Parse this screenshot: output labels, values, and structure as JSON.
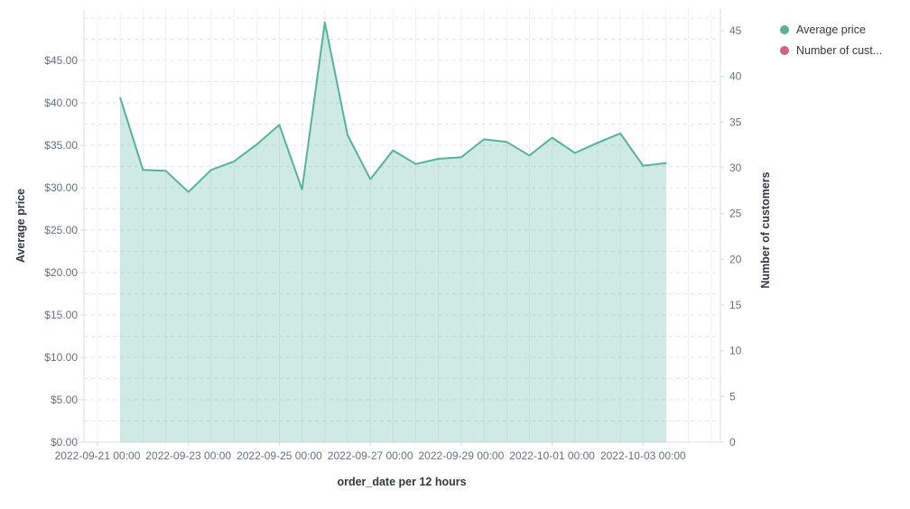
{
  "chart_data": {
    "type": "area",
    "title": "",
    "xlabel": "order_date per 12 hours",
    "ylabel_left": "Average price",
    "ylabel_right": "Number of customers",
    "x": [
      "2022-09-21 12:00",
      "2022-09-22 00:00",
      "2022-09-22 12:00",
      "2022-09-23 00:00",
      "2022-09-23 12:00",
      "2022-09-24 00:00",
      "2022-09-24 12:00",
      "2022-09-25 00:00",
      "2022-09-25 12:00",
      "2022-09-26 00:00",
      "2022-09-26 12:00",
      "2022-09-27 00:00",
      "2022-09-27 12:00",
      "2022-09-28 00:00",
      "2022-09-28 12:00",
      "2022-09-29 00:00",
      "2022-09-29 12:00",
      "2022-09-30 00:00",
      "2022-09-30 12:00",
      "2022-10-01 00:00",
      "2022-10-01 12:00",
      "2022-10-02 00:00",
      "2022-10-02 12:00",
      "2022-10-03 00:00",
      "2022-10-03 12:00"
    ],
    "series": [
      {
        "name": "Average price",
        "axis": "left",
        "color": "#54B399",
        "fill_opacity": 0.28,
        "values": [
          40.6,
          32.1,
          32.0,
          29.5,
          32.1,
          33.1,
          35.1,
          37.4,
          29.8,
          49.5,
          36.2,
          31.0,
          34.4,
          32.8,
          33.4,
          33.6,
          35.7,
          35.4,
          33.8,
          35.9,
          34.1,
          35.3,
          36.4,
          32.6,
          32.9
        ]
      },
      {
        "name": "Number of customers",
        "axis": "right",
        "color": "#D36086",
        "values": []
      }
    ],
    "axes": {
      "left": {
        "range": [
          0,
          45
        ],
        "tick_step": 5,
        "minor_step": 2.5,
        "ticks": [
          "$0.00",
          "$5.00",
          "$10.00",
          "$15.00",
          "$20.00",
          "$25.00",
          "$30.00",
          "$35.00",
          "$40.00",
          "$45.00"
        ]
      },
      "right": {
        "range": [
          0,
          45
        ],
        "tick_step": 5,
        "ticks": [
          "0",
          "5",
          "10",
          "15",
          "20",
          "25",
          "30",
          "35",
          "40",
          "45"
        ]
      },
      "x": {
        "ticks": [
          "2022-09-21 00:00",
          "2022-09-23 00:00",
          "2022-09-25 00:00",
          "2022-09-27 00:00",
          "2022-09-29 00:00",
          "2022-10-01 00:00",
          "2022-10-03 00:00"
        ],
        "minor_per_major": 4
      }
    },
    "grid": {
      "vertical": true,
      "horizontal_dashed": true
    },
    "legend": {
      "position": "top-right",
      "items": [
        {
          "label": "Average price",
          "color": "#54B399"
        },
        {
          "label": "Number of cust...",
          "color": "#D36086"
        }
      ]
    },
    "colors": {
      "grid_vertical": "#eef0f4",
      "grid_dashed": "#e1e6ec",
      "plot_border": "#d8dee8",
      "tick_mark": "#d3dae6",
      "tick_text": "#69707D",
      "title_text": "#343741"
    }
  }
}
